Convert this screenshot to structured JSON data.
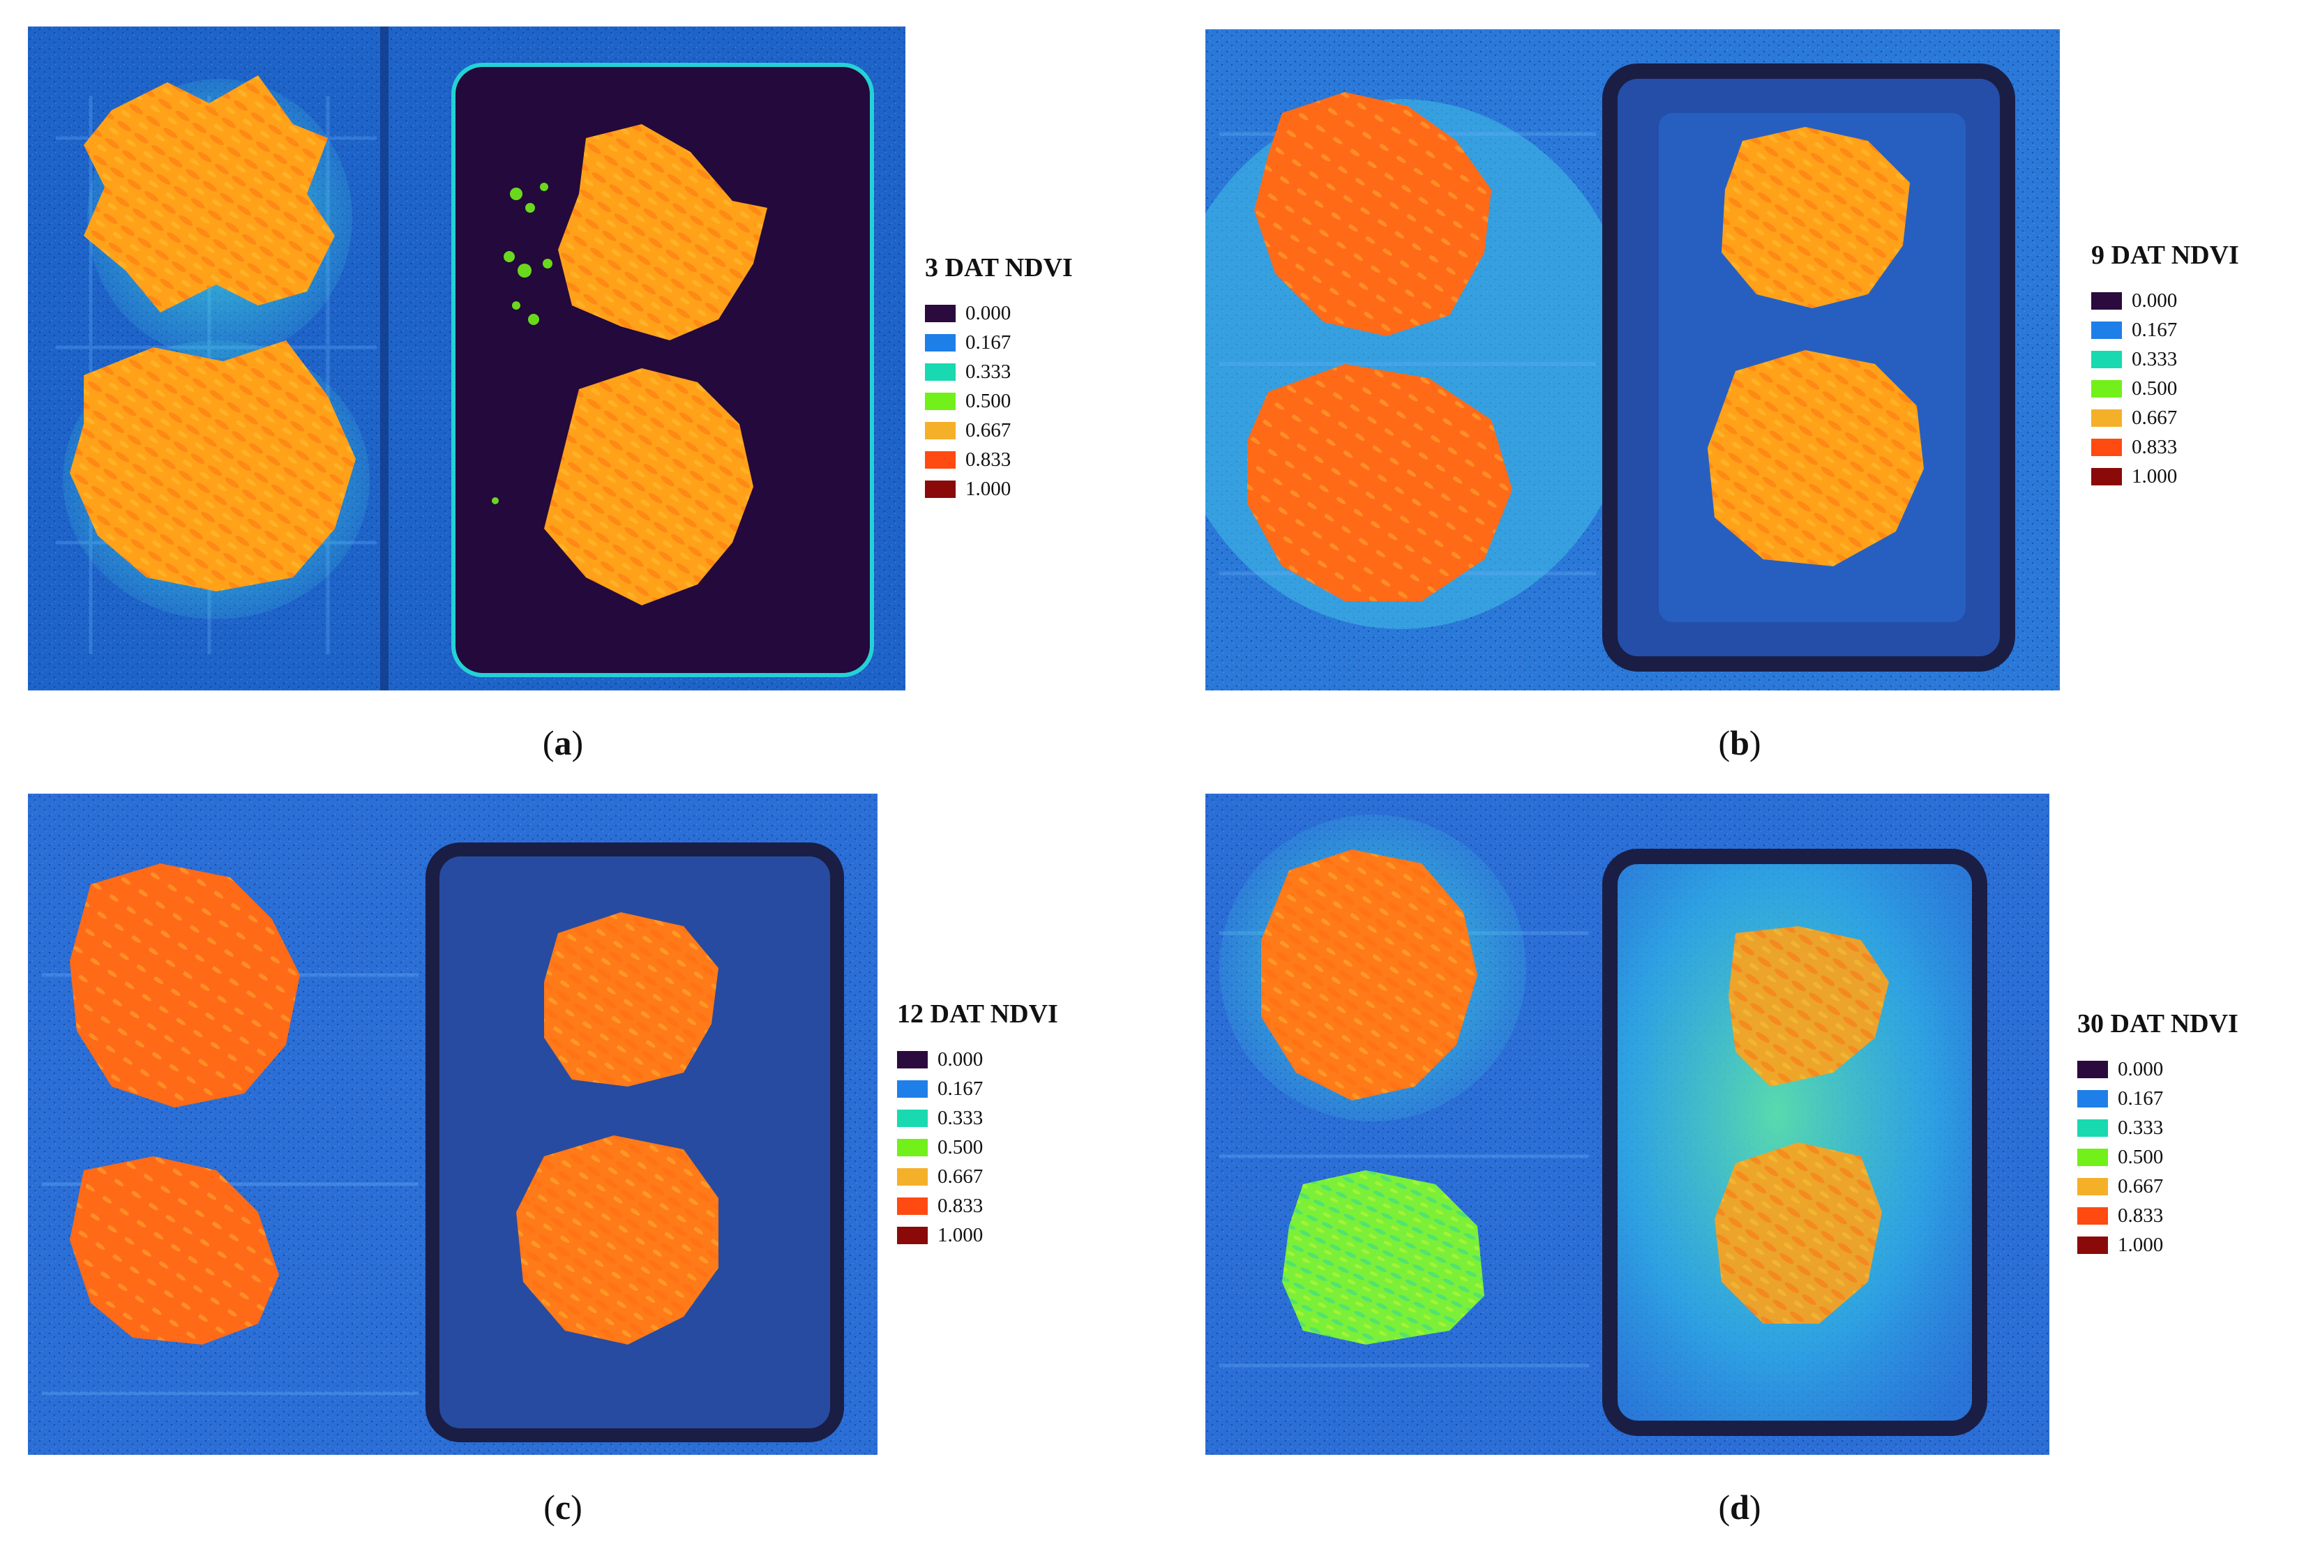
{
  "panels": [
    {
      "label": "a",
      "legend_title": "3 DAT NDVI"
    },
    {
      "label": "b",
      "legend_title": "9 DAT NDVI"
    },
    {
      "label": "c",
      "legend_title": "12 DAT NDVI"
    },
    {
      "label": "d",
      "legend_title": "30 DAT NDVI"
    }
  ],
  "legend": [
    {
      "value": "0.000",
      "color": "#2b0a3d"
    },
    {
      "value": "0.167",
      "color": "#1f7fe8"
    },
    {
      "value": "0.333",
      "color": "#19d9b0"
    },
    {
      "value": "0.500",
      "color": "#72f01a"
    },
    {
      "value": "0.667",
      "color": "#f5b02a"
    },
    {
      "value": "0.833",
      "color": "#ff4a12"
    },
    {
      "value": "1.000",
      "color": "#8a0a0a"
    }
  ],
  "scene_colors": {
    "background": "#1e63c8",
    "background_light": "#3f8ff0",
    "dark_tray": "#23093a",
    "plant_orange": "#ffa21a",
    "plant_red": "#ff5a18",
    "plant_green": "#7cf038",
    "halo_cyan": "#20d6d0"
  }
}
